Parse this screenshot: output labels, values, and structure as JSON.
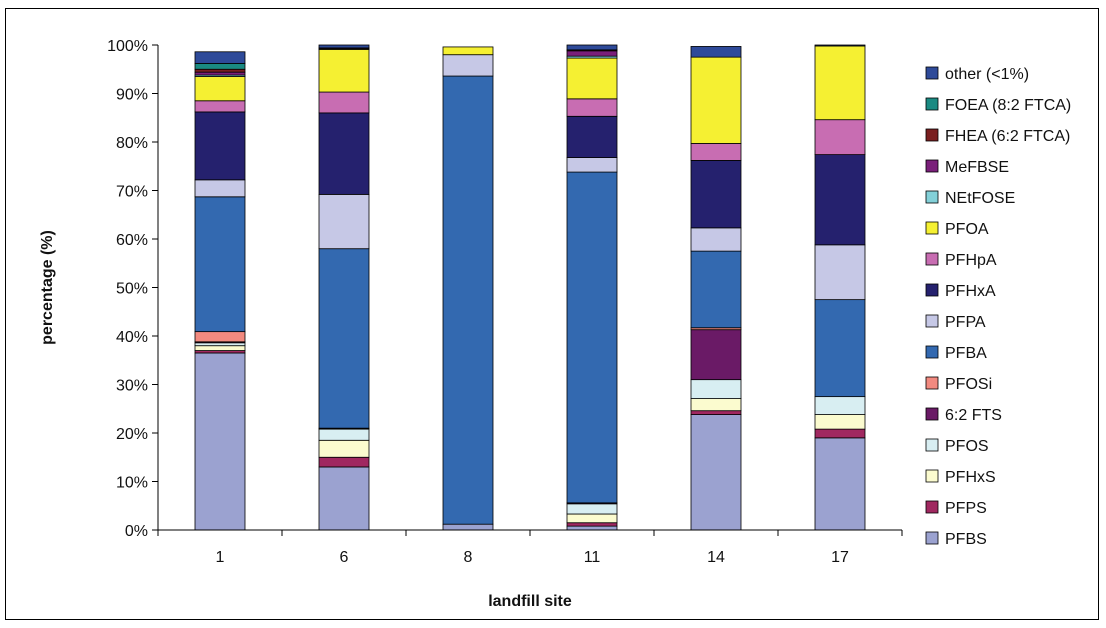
{
  "chart_data": {
    "type": "bar",
    "stacked": true,
    "title": "",
    "xlabel": "landfill site",
    "ylabel": "percentage (%)",
    "ylim": [
      0,
      100
    ],
    "y_ticks": [
      "0%",
      "10%",
      "20%",
      "30%",
      "40%",
      "50%",
      "60%",
      "70%",
      "80%",
      "90%",
      "100%"
    ],
    "categories": [
      "1",
      "6",
      "8",
      "11",
      "14",
      "17"
    ],
    "grid": false,
    "legend_position": "right",
    "series": [
      {
        "name": "PFBS",
        "color": "#9ba2d0",
        "values": [
          36.5,
          13.0,
          1.2,
          0.8,
          23.8,
          19.0
        ]
      },
      {
        "name": "PFPS",
        "color": "#a02860",
        "values": [
          0.5,
          2.0,
          0.0,
          0.7,
          0.8,
          1.8
        ]
      },
      {
        "name": "PFHxS",
        "color": "#fbfbcf",
        "values": [
          1.0,
          3.5,
          0.0,
          1.8,
          2.5,
          3.0
        ]
      },
      {
        "name": "PFOS",
        "color": "#d8eef2",
        "values": [
          0.6,
          2.3,
          0.0,
          2.1,
          3.9,
          3.7
        ]
      },
      {
        "name": "6:2 FTS",
        "color": "#6a1a66",
        "values": [
          0.2,
          0.1,
          0.0,
          0.2,
          10.3,
          0.0
        ]
      },
      {
        "name": "PFOSi",
        "color": "#f28a80",
        "values": [
          2.1,
          0.1,
          0.0,
          0.0,
          0.4,
          0.0
        ]
      },
      {
        "name": "PFBA",
        "color": "#3369b0",
        "values": [
          27.8,
          37.0,
          92.4,
          68.2,
          15.8,
          20.0
        ]
      },
      {
        "name": "PFPA",
        "color": "#c6c8e6",
        "values": [
          3.5,
          11.2,
          4.4,
          3.0,
          4.8,
          11.3
        ]
      },
      {
        "name": "PFHxA",
        "color": "#25216e",
        "values": [
          14.0,
          16.8,
          0.0,
          8.5,
          13.9,
          18.6
        ]
      },
      {
        "name": "PFHpA",
        "color": "#c86db2",
        "values": [
          2.3,
          4.3,
          0.0,
          3.6,
          3.5,
          7.2
        ]
      },
      {
        "name": "PFOA",
        "color": "#f5f032",
        "values": [
          5.0,
          8.8,
          1.6,
          8.4,
          17.8,
          15.2
        ]
      },
      {
        "name": "NEtFOSE",
        "color": "#83d0d8",
        "values": [
          0.3,
          0.1,
          0.0,
          0.4,
          0.0,
          0.0
        ]
      },
      {
        "name": "MeFBSE",
        "color": "#7a1f7a",
        "values": [
          0.6,
          0.2,
          0.0,
          1.1,
          0.0,
          0.0
        ]
      },
      {
        "name": "FHEA (6:2 FTCA)",
        "color": "#7a1f20",
        "values": [
          0.6,
          0.0,
          0.0,
          0.2,
          0.0,
          0.0
        ]
      },
      {
        "name": "FOEA (8:2 FTCA)",
        "color": "#1a8a82",
        "values": [
          1.2,
          0.0,
          0.0,
          0.0,
          0.0,
          0.0
        ]
      },
      {
        "name": "other (<1%)",
        "color": "#2e4a99",
        "values": [
          2.4,
          0.6,
          0.0,
          1.0,
          2.2,
          0.2
        ]
      }
    ]
  }
}
